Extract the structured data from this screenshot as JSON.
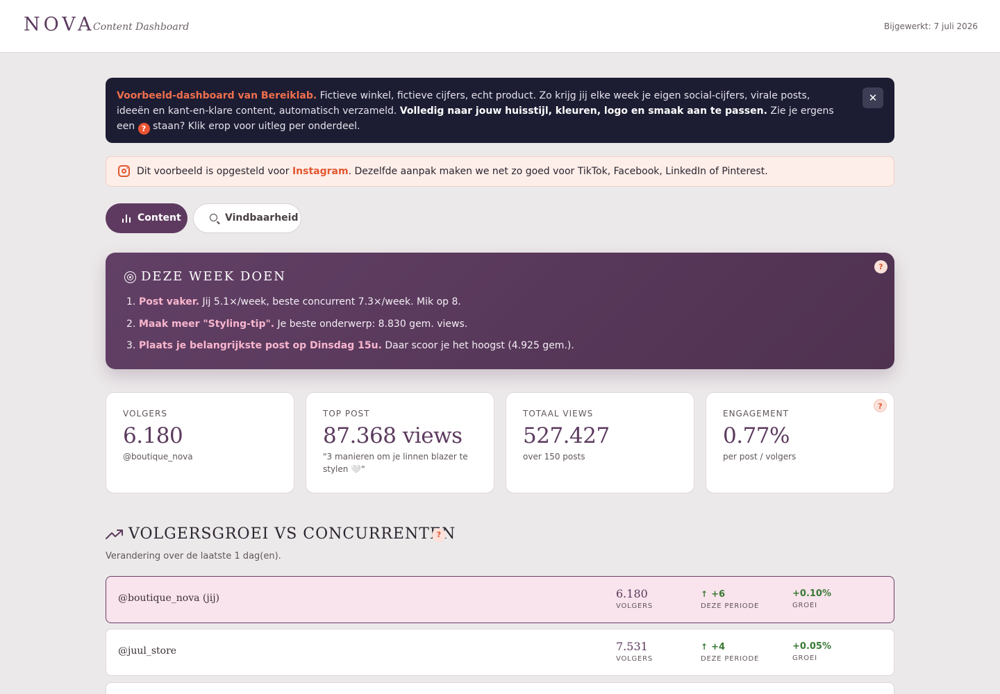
{
  "header": {
    "brand": "NOVA",
    "subtitle": "Content Dashboard",
    "updated": "Bijgewerkt: 7 juli 2026"
  },
  "banner": {
    "accent": "Voorbeeld-dashboard van Bereiklab.",
    "text1": " Fictieve winkel, fictieve cijfers, echt product. Zo krijg jij elke week je eigen social-cijfers, virale posts, ideeën en kant-en-klare content, automatisch verzameld. ",
    "strong": "Volledig naar jouw huisstijl, kleuren, logo en smaak aan te passen.",
    "text2": " Zie je ergens een ",
    "q": "?",
    "text3": " staan? Klik erop voor uitleg per onderdeel.",
    "close": "✕"
  },
  "notice": {
    "text1": "Dit voorbeeld is opgesteld voor ",
    "platform": "Instagram",
    "text2": ". Dezelfde aanpak maken we net zo goed voor TikTok, Facebook, LinkedIn of Pinterest."
  },
  "tabs": {
    "content": "Content",
    "find": "Vindbaarheid"
  },
  "week": {
    "title": "DEZE WEEK DOEN",
    "q": "?",
    "items": [
      {
        "num": "1.",
        "hl": "Post vaker.",
        "text": " Jij 5.1×/week, beste concurrent 7.3×/week. Mik op 8."
      },
      {
        "num": "2.",
        "hl": "Maak meer \"Styling-tip\".",
        "text": " Je beste onderwerp: 8.830 gem. views."
      },
      {
        "num": "3.",
        "hl": "Plaats je belangrijkste post op Dinsdag 15u.",
        "text": " Daar scoor je het hoogst (4.925 gem.)."
      }
    ]
  },
  "stats": [
    {
      "label": "VOLGERS",
      "value": "6.180",
      "sub": "@boutique_nova"
    },
    {
      "label": "TOP POST",
      "value": "87.368 views",
      "sub": "\"3 manieren om je linnen blazer te stylen 🤍\""
    },
    {
      "label": "TOTAAL VIEWS",
      "value": "527.427",
      "sub": "over 150 posts"
    },
    {
      "label": "ENGAGEMENT",
      "value": "0.77%",
      "sub": "per post / volgers",
      "q": "?"
    }
  ],
  "growth": {
    "title": "VOLGERSGROEI VS CONCURRENTEN",
    "q": "?",
    "subtitle": "Verandering over de laatste 1 dag(en).",
    "cap_followers": "VOLGERS",
    "cap_period": "DEZE PERIODE",
    "cap_growth": "GROEI",
    "rows": [
      {
        "handle": "@boutique_nova (jij)",
        "followers": "6.180",
        "period": "+6",
        "growth": "+0.10%"
      },
      {
        "handle": "@juul_store",
        "followers": "7.531",
        "period": "+4",
        "growth": "+0.05%"
      }
    ]
  },
  "colors": {
    "accent": "#5c3a5e",
    "orange": "#e2572f",
    "green": "#3a7a36",
    "pink": "#f9b6cd"
  }
}
